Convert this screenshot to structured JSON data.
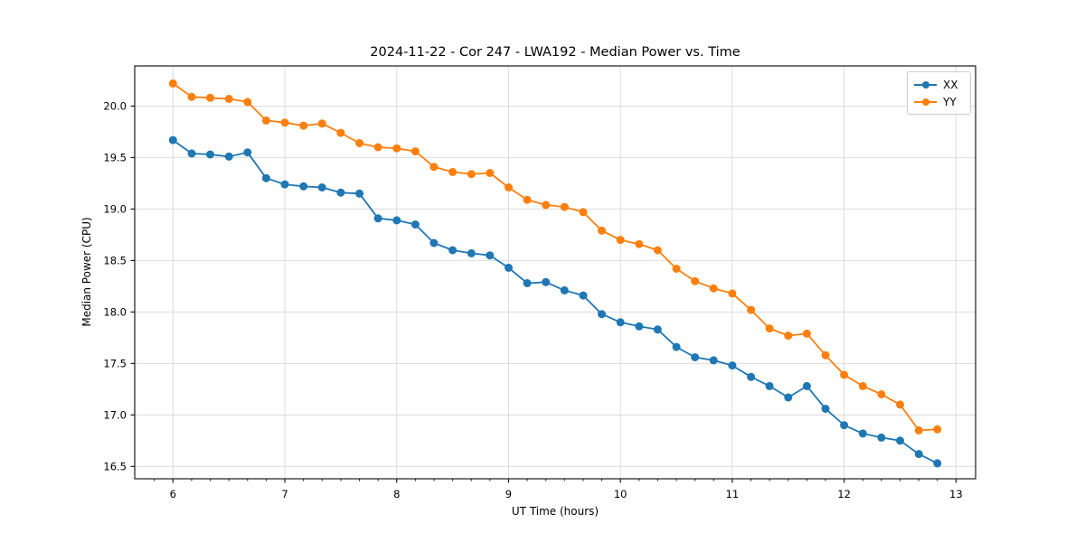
{
  "figure": {
    "background": "#ffffff"
  },
  "chart_data": {
    "type": "line",
    "title": "2024-11-22 - Cor 247 - LWA192 - Median Power vs. Time",
    "xlabel": "UT Time (hours)",
    "ylabel": "Median Power (CPU)",
    "x": [
      6.0,
      6.167,
      6.333,
      6.5,
      6.667,
      6.833,
      7.0,
      7.167,
      7.333,
      7.5,
      7.667,
      7.833,
      8.0,
      8.167,
      8.333,
      8.5,
      8.667,
      8.833,
      9.0,
      9.167,
      9.333,
      9.5,
      9.667,
      9.833,
      10.0,
      10.167,
      10.333,
      10.5,
      10.667,
      10.833,
      11.0,
      11.167,
      11.333,
      11.5,
      11.667,
      11.833,
      12.0,
      12.167,
      12.333,
      12.5,
      12.667,
      12.833
    ],
    "series": [
      {
        "name": "XX",
        "color": "#1f77b4",
        "values": [
          19.67,
          19.54,
          19.53,
          19.51,
          19.55,
          19.3,
          19.24,
          19.22,
          19.21,
          19.16,
          19.15,
          18.91,
          18.89,
          18.85,
          18.67,
          18.6,
          18.57,
          18.55,
          18.43,
          18.28,
          18.29,
          18.21,
          18.16,
          17.98,
          17.9,
          17.86,
          17.83,
          17.66,
          17.56,
          17.53,
          17.48,
          17.37,
          17.28,
          17.17,
          17.28,
          17.06,
          16.9,
          16.82,
          16.78,
          16.75,
          16.62,
          16.53
        ]
      },
      {
        "name": "YY",
        "color": "#ff7f0e",
        "values": [
          20.22,
          20.09,
          20.08,
          20.07,
          20.04,
          19.86,
          19.84,
          19.81,
          19.83,
          19.74,
          19.64,
          19.6,
          19.59,
          19.56,
          19.41,
          19.36,
          19.34,
          19.35,
          19.21,
          19.09,
          19.04,
          19.02,
          18.97,
          18.79,
          18.7,
          18.66,
          18.6,
          18.42,
          18.3,
          18.23,
          18.18,
          18.02,
          17.84,
          17.77,
          17.79,
          17.58,
          17.39,
          17.28,
          17.2,
          17.1,
          16.85,
          16.86
        ]
      }
    ],
    "xlim": [
      5.658,
      13.175
    ],
    "ylim": [
      16.38,
      20.39
    ],
    "xticks": [
      6,
      7,
      8,
      9,
      10,
      11,
      12,
      13
    ],
    "yticks": [
      16.5,
      17.0,
      17.5,
      18.0,
      18.5,
      19.0,
      19.5,
      20.0
    ],
    "x_minor_step": 0.1667,
    "grid": true,
    "grid_color": "#dcdcdc",
    "spine_color": "#1a1a1a",
    "tick_label_color": "#000000",
    "legend": {
      "position": "upper right",
      "labels": [
        "XX",
        "YY"
      ]
    },
    "marker": "circle"
  }
}
